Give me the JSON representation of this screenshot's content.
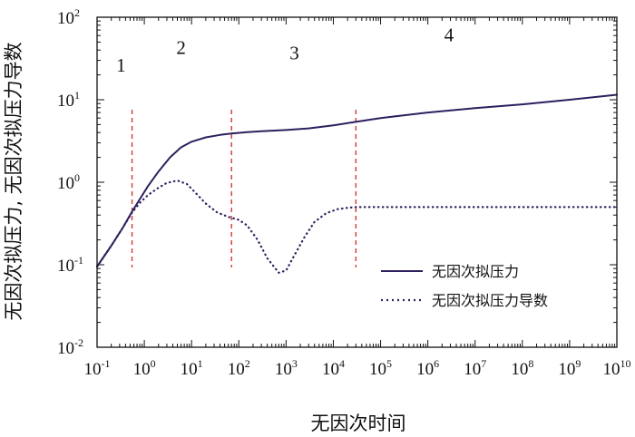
{
  "chart_data": {
    "type": "line",
    "title": "",
    "xlabel": "无因次时间",
    "ylabel": "无因次拟压力, 无因次拟压力导数",
    "xscale": "log",
    "yscale": "log",
    "xlim": [
      0.1,
      10000000000
    ],
    "ylim": [
      0.01,
      100
    ],
    "grid": false,
    "legend_position": "lower-right",
    "x_ticks": [
      {
        "base": "10",
        "exp": "-1",
        "value": 0.1
      },
      {
        "base": "10",
        "exp": "0",
        "value": 1
      },
      {
        "base": "10",
        "exp": "1",
        "value": 10
      },
      {
        "base": "10",
        "exp": "2",
        "value": 100
      },
      {
        "base": "10",
        "exp": "3",
        "value": 1000
      },
      {
        "base": "10",
        "exp": "4",
        "value": 10000
      },
      {
        "base": "10",
        "exp": "5",
        "value": 100000
      },
      {
        "base": "10",
        "exp": "6",
        "value": 1000000
      },
      {
        "base": "10",
        "exp": "7",
        "value": 10000000
      },
      {
        "base": "10",
        "exp": "8",
        "value": 100000000
      },
      {
        "base": "10",
        "exp": "9",
        "value": 1000000000
      },
      {
        "base": "10",
        "exp": "10",
        "value": 10000000000
      }
    ],
    "y_ticks": [
      {
        "base": "10",
        "exp": "-2",
        "value": 0.01
      },
      {
        "base": "10",
        "exp": "-1",
        "value": 0.1
      },
      {
        "base": "10",
        "exp": "0",
        "value": 1
      },
      {
        "base": "10",
        "exp": "1",
        "value": 10
      },
      {
        "base": "10",
        "exp": "2",
        "value": 100
      }
    ],
    "series": [
      {
        "name": "无因次拟压力",
        "style": "solid",
        "color": "#2e1f5e",
        "points": [
          [
            0.1,
            0.095
          ],
          [
            0.2,
            0.17
          ],
          [
            0.35,
            0.28
          ],
          [
            0.55,
            0.44
          ],
          [
            0.8,
            0.62
          ],
          [
            1.2,
            0.9
          ],
          [
            2,
            1.35
          ],
          [
            3.5,
            2.0
          ],
          [
            6,
            2.65
          ],
          [
            10,
            3.1
          ],
          [
            20,
            3.5
          ],
          [
            40,
            3.75
          ],
          [
            70,
            3.9
          ],
          [
            150,
            4.05
          ],
          [
            300,
            4.15
          ],
          [
            1000,
            4.3
          ],
          [
            3000,
            4.5
          ],
          [
            10000,
            4.9
          ],
          [
            30000,
            5.4
          ],
          [
            100000,
            6.0
          ],
          [
            1000000,
            7.0
          ],
          [
            10000000,
            7.9
          ],
          [
            100000000,
            8.8
          ],
          [
            1000000000,
            10.0
          ],
          [
            10000000000,
            11.5
          ]
        ]
      },
      {
        "name": "无因次拟压力导数",
        "style": "dotted",
        "color": "#2e1f5e",
        "points": [
          [
            0.1,
            0.095
          ],
          [
            0.2,
            0.17
          ],
          [
            0.35,
            0.28
          ],
          [
            0.55,
            0.43
          ],
          [
            0.8,
            0.56
          ],
          [
            1.2,
            0.7
          ],
          [
            2,
            0.86
          ],
          [
            3,
            0.98
          ],
          [
            5,
            1.05
          ],
          [
            8,
            0.95
          ],
          [
            12,
            0.75
          ],
          [
            20,
            0.55
          ],
          [
            35,
            0.43
          ],
          [
            60,
            0.38
          ],
          [
            100,
            0.35
          ],
          [
            150,
            0.3
          ],
          [
            250,
            0.2
          ],
          [
            400,
            0.12
          ],
          [
            700,
            0.08
          ],
          [
            1000,
            0.085
          ],
          [
            1500,
            0.13
          ],
          [
            2500,
            0.22
          ],
          [
            4000,
            0.33
          ],
          [
            7000,
            0.42
          ],
          [
            12000,
            0.47
          ],
          [
            20000,
            0.49
          ],
          [
            30000,
            0.5
          ],
          [
            100000,
            0.5
          ],
          [
            10000000000,
            0.5
          ]
        ]
      }
    ],
    "region_dividers": [
      0.55,
      70,
      30000
    ],
    "region_labels": [
      {
        "text": "1",
        "x": 0.32,
        "y": 22
      },
      {
        "text": "2",
        "x": 6,
        "y": 36
      },
      {
        "text": "3",
        "x": 1500,
        "y": 31
      },
      {
        "text": "4",
        "x": 2800000,
        "y": 51
      }
    ]
  }
}
